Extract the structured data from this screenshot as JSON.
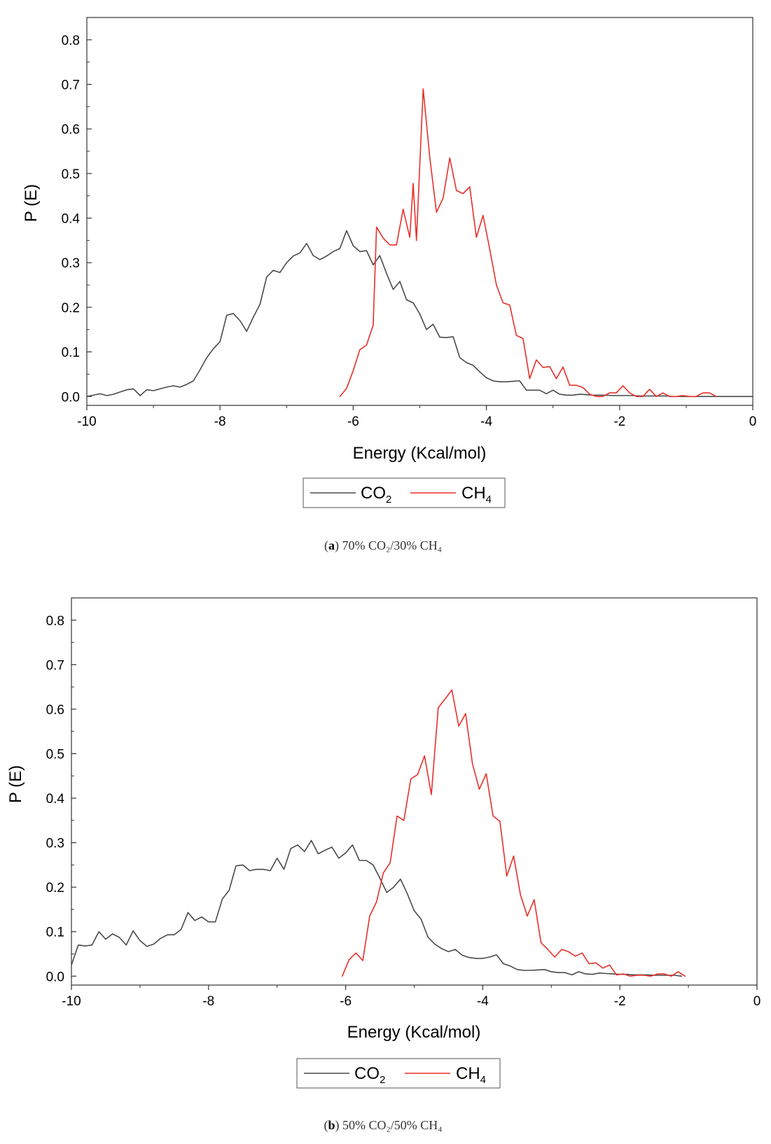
{
  "chart_data": [
    {
      "type": "line",
      "caption_label": "a",
      "caption_text": "70% CO₂/30% CH₄",
      "xlabel": "Energy (Kcal/mol)",
      "ylabel": "P (E)",
      "xlim": [
        -10,
        0
      ],
      "ylim": [
        -0.02,
        0.85
      ],
      "xticks": [
        -10,
        -8,
        -6,
        -4,
        -2,
        0
      ],
      "xtick_labels": [
        "-10",
        "-8",
        "-6",
        "-4",
        "-2",
        "0"
      ],
      "yticks": [
        0.0,
        0.1,
        0.2,
        0.3,
        0.4,
        0.5,
        0.6,
        0.7,
        0.8
      ],
      "ytick_labels": [
        "0.0",
        "0.1",
        "0.2",
        "0.3",
        "0.4",
        "0.5",
        "0.6",
        "0.7",
        "0.8"
      ],
      "legend": {
        "position": "bottom-center",
        "entries": [
          {
            "text": "CO",
            "sub": "2"
          },
          {
            "text": "CH",
            "sub": "4"
          }
        ]
      },
      "series": [
        {
          "name": "CO2",
          "color": "#4a4a4a",
          "x": [
            -10.0,
            -9.9,
            -9.8,
            -9.7,
            -9.6,
            -9.5,
            -9.4,
            -9.3,
            -9.2,
            -9.1,
            -9.0,
            -8.9,
            -8.8,
            -8.7,
            -8.6,
            -8.5,
            -8.4,
            -8.3,
            -8.2,
            -8.1,
            -8.0,
            -7.9,
            -7.8,
            -7.7,
            -7.6,
            -7.5,
            -7.4,
            -7.3,
            -7.2,
            -7.1,
            -7.0,
            -6.9,
            -6.8,
            -6.7,
            -6.6,
            -6.5,
            -6.4,
            -6.3,
            -6.2,
            -6.1,
            -6.0,
            -5.9,
            -5.8,
            -5.7,
            -5.6,
            -5.5,
            -5.4,
            -5.3,
            -5.2,
            -5.1,
            -5.0,
            -4.9,
            -4.8,
            -4.7,
            -4.6,
            -4.5,
            -4.4,
            -4.3,
            -4.2,
            -4.1,
            -4.0,
            -3.9,
            -3.8,
            -3.7,
            -3.6,
            -3.5,
            -3.4,
            -3.3,
            -3.2,
            -3.1,
            -3.0,
            -2.9,
            -2.8,
            -2.7,
            -2.6,
            -2.5,
            -2.4,
            -2.3,
            -2.2,
            -2.1,
            -2.0,
            -1.9,
            -1.8,
            -1.7,
            -1.6,
            -1.5,
            -1.4,
            -1.3,
            -1.2,
            -1.1,
            -1.0,
            -0.9,
            -0.8,
            -0.7,
            -0.6,
            -0.5,
            -0.4,
            -0.3,
            -0.2,
            -0.1,
            0.0
          ],
          "y": [
            0.0,
            0.003,
            0.006,
            0.002,
            0.005,
            0.01,
            0.015,
            0.017,
            0.002,
            0.015,
            0.013,
            0.017,
            0.021,
            0.024,
            0.021,
            0.027,
            0.035,
            0.06,
            0.087,
            0.107,
            0.123,
            0.182,
            0.186,
            0.17,
            0.146,
            0.178,
            0.207,
            0.268,
            0.283,
            0.278,
            0.3,
            0.315,
            0.322,
            0.343,
            0.316,
            0.307,
            0.315,
            0.325,
            0.332,
            0.372,
            0.338,
            0.325,
            0.327,
            0.295,
            0.316,
            0.276,
            0.24,
            0.258,
            0.217,
            0.21,
            0.185,
            0.15,
            0.162,
            0.133,
            0.132,
            0.134,
            0.087,
            0.076,
            0.07,
            0.055,
            0.042,
            0.035,
            0.033,
            0.033,
            0.034,
            0.035,
            0.014,
            0.014,
            0.014,
            0.006,
            0.014,
            0.005,
            0.003,
            0.003,
            0.005,
            0.004,
            0.003,
            0.003,
            0.003,
            0.002,
            0.002,
            0.002,
            0.002,
            0.001,
            0.001,
            0.001,
            0.001,
            0.001,
            0.0,
            0.0,
            0.0,
            0.0,
            0.0,
            0.0,
            0.0,
            0.0,
            0.0,
            0.0,
            0.0,
            0.0,
            0.0
          ]
        },
        {
          "name": "CH4",
          "color": "#e8302a",
          "x": [
            -6.2,
            -6.1,
            -6.0,
            -5.9,
            -5.8,
            -5.7,
            -5.65,
            -5.55,
            -5.45,
            -5.35,
            -5.25,
            -5.15,
            -5.1,
            -5.05,
            -4.95,
            -4.85,
            -4.75,
            -4.65,
            -4.55,
            -4.45,
            -4.35,
            -4.25,
            -4.15,
            -4.05,
            -3.95,
            -3.85,
            -3.75,
            -3.65,
            -3.55,
            -3.45,
            -3.35,
            -3.25,
            -3.15,
            -3.05,
            -2.95,
            -2.85,
            -2.75,
            -2.65,
            -2.55,
            -2.45,
            -2.35,
            -2.25,
            -2.15,
            -2.05,
            -1.95,
            -1.85,
            -1.75,
            -1.65,
            -1.55,
            -1.45,
            -1.35,
            -1.25,
            -1.15,
            -1.05,
            -0.95,
            -0.85,
            -0.75,
            -0.65,
            -0.55
          ],
          "y": [
            0.0,
            0.018,
            0.058,
            0.105,
            0.115,
            0.16,
            0.38,
            0.355,
            0.34,
            0.34,
            0.42,
            0.357,
            0.478,
            0.35,
            0.69,
            0.535,
            0.413,
            0.445,
            0.535,
            0.462,
            0.455,
            0.47,
            0.357,
            0.406,
            0.33,
            0.25,
            0.21,
            0.205,
            0.137,
            0.13,
            0.04,
            0.082,
            0.065,
            0.067,
            0.04,
            0.066,
            0.025,
            0.025,
            0.02,
            0.005,
            0.0,
            0.0,
            0.008,
            0.008,
            0.024,
            0.008,
            0.0,
            0.0,
            0.016,
            0.0,
            0.008,
            0.0,
            0.0,
            0.002,
            0.0,
            0.0,
            0.008,
            0.008,
            0.0
          ]
        }
      ]
    },
    {
      "type": "line",
      "caption_label": "b",
      "caption_text": "50% CO₂/50% CH₄",
      "xlabel": "Energy (Kcal/mol)",
      "ylabel": "P (E)",
      "xlim": [
        -10,
        0
      ],
      "ylim": [
        -0.02,
        0.85
      ],
      "xticks": [
        -10,
        -8,
        -6,
        -4,
        -2,
        0
      ],
      "xtick_labels": [
        "-10",
        "-8",
        "-6",
        "-4",
        "-2",
        "0"
      ],
      "yticks": [
        0.0,
        0.1,
        0.2,
        0.3,
        0.4,
        0.5,
        0.6,
        0.7,
        0.8
      ],
      "ytick_labels": [
        "0.0",
        "0.1",
        "0.2",
        "0.3",
        "0.4",
        "0.5",
        "0.6",
        "0.7",
        "0.8"
      ],
      "legend": {
        "position": "bottom-center",
        "entries": [
          {
            "text": "CO",
            "sub": "2"
          },
          {
            "text": "CH",
            "sub": "4"
          }
        ]
      },
      "series": [
        {
          "name": "CO2",
          "color": "#4a4a4a",
          "x": [
            -10.0,
            -9.9,
            -9.8,
            -9.7,
            -9.6,
            -9.5,
            -9.4,
            -9.3,
            -9.2,
            -9.1,
            -9.0,
            -8.9,
            -8.8,
            -8.7,
            -8.6,
            -8.5,
            -8.4,
            -8.3,
            -8.2,
            -8.1,
            -8.0,
            -7.9,
            -7.8,
            -7.7,
            -7.6,
            -7.5,
            -7.4,
            -7.3,
            -7.2,
            -7.1,
            -7.0,
            -6.9,
            -6.8,
            -6.7,
            -6.6,
            -6.5,
            -6.4,
            -6.3,
            -6.2,
            -6.1,
            -6.0,
            -5.9,
            -5.8,
            -5.7,
            -5.6,
            -5.5,
            -5.4,
            -5.3,
            -5.2,
            -5.1,
            -5.0,
            -4.9,
            -4.8,
            -4.7,
            -4.6,
            -4.5,
            -4.4,
            -4.3,
            -4.2,
            -4.1,
            -4.0,
            -3.9,
            -3.8,
            -3.7,
            -3.6,
            -3.5,
            -3.4,
            -3.3,
            -3.2,
            -3.1,
            -3.0,
            -2.9,
            -2.8,
            -2.7,
            -2.6,
            -2.5,
            -2.4,
            -2.3,
            -2.2,
            -2.1,
            -2.0,
            -1.9,
            -1.8,
            -1.7,
            -1.6,
            -1.5,
            -1.4,
            -1.3,
            -1.2,
            -1.1
          ],
          "y": [
            0.025,
            0.07,
            0.068,
            0.07,
            0.1,
            0.083,
            0.095,
            0.087,
            0.07,
            0.102,
            0.08,
            0.067,
            0.072,
            0.085,
            0.093,
            0.093,
            0.105,
            0.143,
            0.125,
            0.133,
            0.122,
            0.122,
            0.173,
            0.193,
            0.248,
            0.25,
            0.237,
            0.24,
            0.24,
            0.237,
            0.265,
            0.24,
            0.287,
            0.295,
            0.28,
            0.305,
            0.275,
            0.283,
            0.29,
            0.265,
            0.277,
            0.295,
            0.26,
            0.26,
            0.25,
            0.22,
            0.188,
            0.2,
            0.218,
            0.185,
            0.147,
            0.128,
            0.088,
            0.072,
            0.062,
            0.055,
            0.06,
            0.047,
            0.042,
            0.04,
            0.04,
            0.043,
            0.048,
            0.028,
            0.023,
            0.015,
            0.013,
            0.013,
            0.014,
            0.015,
            0.01,
            0.008,
            0.008,
            0.003,
            0.01,
            0.005,
            0.004,
            0.007,
            0.006,
            0.005,
            0.004,
            0.004,
            0.003,
            0.003,
            0.003,
            0.002,
            0.002,
            0.002,
            0.002,
            0.0
          ]
        },
        {
          "name": "CH4",
          "color": "#e8302a",
          "x": [
            -6.05,
            -5.95,
            -5.85,
            -5.75,
            -5.65,
            -5.55,
            -5.45,
            -5.35,
            -5.25,
            -5.15,
            -5.05,
            -4.95,
            -4.85,
            -4.75,
            -4.65,
            -4.55,
            -4.45,
            -4.35,
            -4.25,
            -4.15,
            -4.05,
            -3.95,
            -3.85,
            -3.75,
            -3.65,
            -3.55,
            -3.45,
            -3.35,
            -3.25,
            -3.15,
            -3.05,
            -2.95,
            -2.85,
            -2.75,
            -2.65,
            -2.55,
            -2.45,
            -2.35,
            -2.25,
            -2.15,
            -2.05,
            -1.95,
            -1.85,
            -1.75,
            -1.65,
            -1.55,
            -1.45,
            -1.35,
            -1.25,
            -1.15,
            -1.05
          ],
          "y": [
            0.0,
            0.037,
            0.052,
            0.035,
            0.135,
            0.167,
            0.232,
            0.255,
            0.36,
            0.35,
            0.443,
            0.453,
            0.495,
            0.408,
            0.603,
            0.623,
            0.643,
            0.562,
            0.59,
            0.477,
            0.42,
            0.455,
            0.36,
            0.348,
            0.225,
            0.27,
            0.183,
            0.135,
            0.172,
            0.075,
            0.06,
            0.043,
            0.06,
            0.055,
            0.045,
            0.052,
            0.028,
            0.03,
            0.018,
            0.025,
            0.003,
            0.005,
            0.0,
            0.002,
            0.002,
            0.0,
            0.005,
            0.005,
            0.0,
            0.01,
            0.0
          ]
        }
      ]
    }
  ]
}
